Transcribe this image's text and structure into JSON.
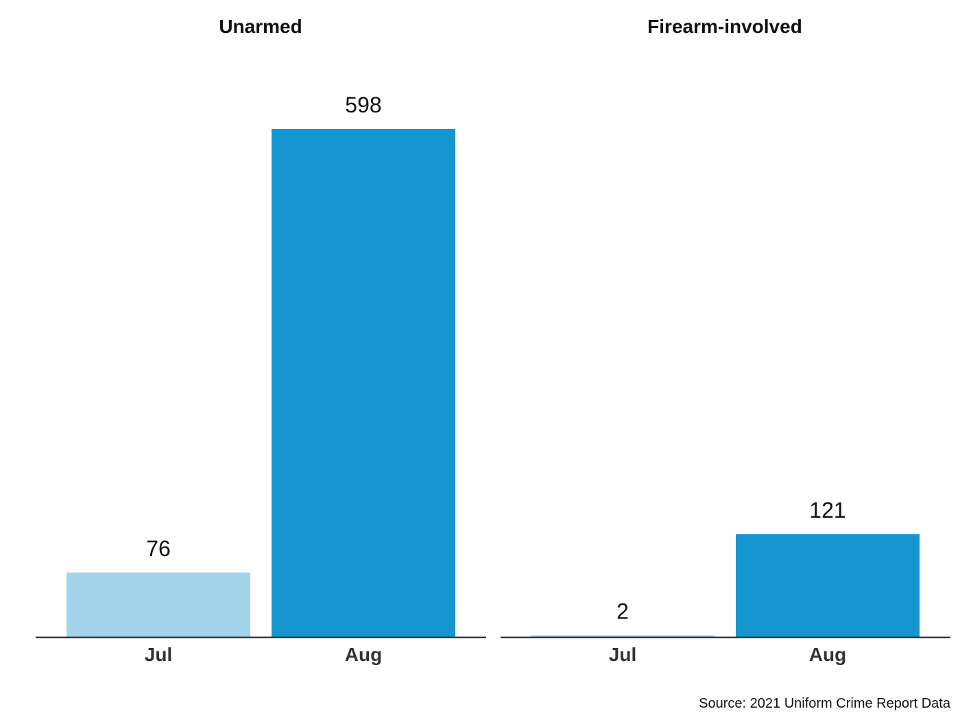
{
  "chart_data": [
    {
      "type": "bar",
      "title": "Unarmed",
      "categories": [
        "Jul",
        "Aug"
      ],
      "values": [
        76,
        598
      ],
      "bar_colors": [
        "#a3d4ec",
        "#1696d0"
      ],
      "ylim": [
        0,
        598
      ],
      "grid": false,
      "legend": "none"
    },
    {
      "type": "bar",
      "title": "Firearm-involved",
      "categories": [
        "Jul",
        "Aug"
      ],
      "values": [
        2,
        121
      ],
      "bar_colors": [
        "#a3d4ec",
        "#1696d0"
      ],
      "ylim": [
        0,
        598
      ],
      "grid": false,
      "legend": "none"
    }
  ],
  "source": "Source: 2021 Uniform Crime Report Data"
}
